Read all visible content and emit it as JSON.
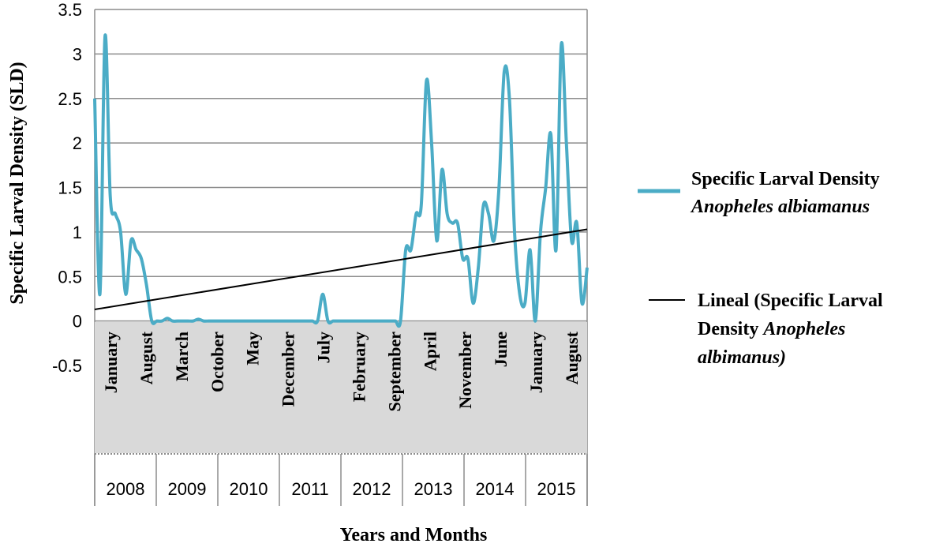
{
  "chart_data": {
    "type": "line",
    "title": "",
    "xlabel": "Years and Months",
    "ylabel": "Specific Larval Density (SLD)",
    "ylim": [
      -0.5,
      3.5
    ],
    "yticks": [
      "3.5",
      "3",
      "2.5",
      "2",
      "1.5",
      "1",
      "0.5",
      "0",
      "-0.5"
    ],
    "grid": true,
    "legend_position": "right",
    "month_labels": [
      "January",
      "August",
      "March",
      "October",
      "May",
      "December",
      "July",
      "February",
      "September",
      "April",
      "November",
      "June",
      "January",
      "August"
    ],
    "years": [
      "2008",
      "2009",
      "2010",
      "2011",
      "2012",
      "2013",
      "2014",
      "2015"
    ],
    "series": [
      {
        "name": "Specific Larval Density Anopheles albiamanus",
        "name_lines": [
          {
            "parts": [
              {
                "t": "Specific Larval Density",
                "i": false
              }
            ]
          },
          {
            "parts": [
              {
                "t": "Anopheles albiamanus",
                "i": true
              }
            ]
          }
        ],
        "color": "#4bacc6",
        "x": [
          0,
          1,
          2,
          3,
          4,
          5,
          6,
          7,
          8,
          9,
          10,
          11,
          12,
          13,
          14,
          15,
          16,
          17,
          18,
          19,
          20,
          21,
          22,
          23,
          24,
          25,
          26,
          27,
          28,
          29,
          30,
          31,
          32,
          33,
          34,
          35,
          36,
          37,
          38,
          39,
          40,
          41,
          42,
          43,
          44,
          45,
          46,
          47,
          48,
          49,
          50,
          51,
          52,
          53,
          54,
          55,
          56,
          57,
          58,
          59,
          60,
          61,
          62,
          63,
          64,
          65,
          66,
          67,
          68,
          69,
          70,
          71,
          72,
          73,
          74,
          75,
          76,
          77,
          78,
          79,
          80,
          81,
          82,
          83,
          84,
          85,
          86,
          87,
          88,
          89,
          90,
          91,
          92,
          93,
          94,
          95
        ],
        "values": [
          2.5,
          0.3,
          3.2,
          1.4,
          1.2,
          1.0,
          0.3,
          0.9,
          0.8,
          0.7,
          0.4,
          0.0,
          0.0,
          0.0,
          0.03,
          0.0,
          0.0,
          0.0,
          0.0,
          0.0,
          0.02,
          0.0,
          0.0,
          0.0,
          0.0,
          0.0,
          0.0,
          0.0,
          0.0,
          0.0,
          0.0,
          0.0,
          0.0,
          0.0,
          0.0,
          0.0,
          0.0,
          0.0,
          0.0,
          0.0,
          0.0,
          0.0,
          0.0,
          0.0,
          0.3,
          0.0,
          0.0,
          0.0,
          0.0,
          0.0,
          0.0,
          0.0,
          0.0,
          0.0,
          0.0,
          0.0,
          0.0,
          0.0,
          0.0,
          0.0,
          0.8,
          0.8,
          1.2,
          1.3,
          2.7,
          2.0,
          0.9,
          1.7,
          1.2,
          1.1,
          1.1,
          0.7,
          0.7,
          0.2,
          0.6,
          1.3,
          1.2,
          0.9,
          1.5,
          2.8,
          2.5,
          1.0,
          0.3,
          0.2,
          0.8,
          0.0,
          1.0,
          1.5,
          2.1,
          0.8,
          3.1,
          2.0,
          0.9,
          1.1,
          0.2,
          0.6
        ]
      },
      {
        "name": "Lineal (Specific Larval Density Anopheles albimanus)",
        "name_lines": [
          {
            "parts": [
              {
                "t": "Lineal (Specific Larval",
                "i": false
              }
            ]
          },
          {
            "parts": [
              {
                "t": "Density ",
                "i": false
              },
              {
                "t": "Anopheles",
                "i": true
              }
            ]
          },
          {
            "parts": [
              {
                "t": "albimanus)",
                "i": true
              }
            ]
          }
        ],
        "color": "#000000",
        "x": [
          0,
          95
        ],
        "values": [
          0.13,
          1.03
        ]
      }
    ]
  }
}
